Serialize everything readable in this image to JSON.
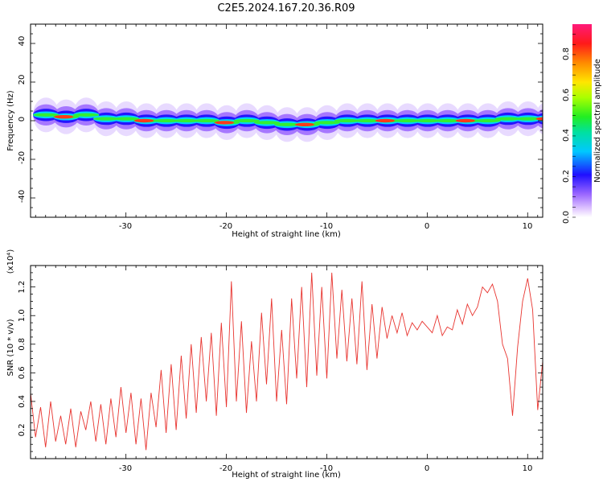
{
  "figure": {
    "title": "C2E5.2024.167.20.36.R09"
  },
  "spectrogram": {
    "ylabel": "Frequency (Hz)",
    "xlabel": "Height of straight line (km)",
    "xticks": [
      "-30",
      "-20",
      "-10",
      "0",
      "10"
    ],
    "yticks": [
      "40",
      "20",
      "0",
      "-20",
      "-40"
    ],
    "colorbar": {
      "label": "Normalized spectral amplitude",
      "ticks": [
        "0.0",
        "0.2",
        "0.4",
        "0.6",
        "0.8"
      ]
    }
  },
  "chart_data": [
    {
      "type": "heatmap",
      "title": "C2E5.2024.167.20.36.R09",
      "xlabel": "Height of straight line (km)",
      "ylabel": "Frequency (Hz)",
      "xlim": [
        -39.5,
        11.5
      ],
      "ylim": [
        -50,
        50
      ],
      "colorbar_label": "Normalized spectral amplitude",
      "colorbar_range": [
        0.0,
        0.95
      ],
      "ridge": [
        {
          "x": -39,
          "y": 3
        },
        {
          "x": -37,
          "y": 2
        },
        {
          "x": -35,
          "y": 3
        },
        {
          "x": -33,
          "y": 1
        },
        {
          "x": -31,
          "y": 1
        },
        {
          "x": -29,
          "y": 0
        },
        {
          "x": -27,
          "y": 0
        },
        {
          "x": -25,
          "y": 0
        },
        {
          "x": -23,
          "y": 0
        },
        {
          "x": -21,
          "y": -1
        },
        {
          "x": -19,
          "y": 0
        },
        {
          "x": -17,
          "y": -1
        },
        {
          "x": -15,
          "y": -2
        },
        {
          "x": -13,
          "y": -2
        },
        {
          "x": -11,
          "y": -1
        },
        {
          "x": -9,
          "y": 0
        },
        {
          "x": -7,
          "y": 0
        },
        {
          "x": -5,
          "y": 0
        },
        {
          "x": -3,
          "y": 0
        },
        {
          "x": -1,
          "y": 0
        },
        {
          "x": 1,
          "y": 0
        },
        {
          "x": 3,
          "y": 0
        },
        {
          "x": 5,
          "y": 0
        },
        {
          "x": 7,
          "y": 1
        },
        {
          "x": 9,
          "y": 1
        },
        {
          "x": 11,
          "y": 1
        }
      ]
    },
    {
      "type": "line",
      "xlabel": "Height of straight line (km)",
      "ylabel": "SNR (10 * v/v)",
      "yscale_label": "(x10⁴)",
      "xlim": [
        -39.5,
        11.5
      ],
      "ylim": [
        0.0,
        1.35
      ],
      "x": [
        -39.5,
        -39,
        -38.5,
        -38,
        -37.5,
        -37,
        -36.5,
        -36,
        -35.5,
        -35,
        -34.5,
        -34,
        -33.5,
        -33,
        -32.5,
        -32,
        -31.5,
        -31,
        -30.5,
        -30,
        -29.5,
        -29,
        -28.5,
        -28,
        -27.5,
        -27,
        -26.5,
        -26,
        -25.5,
        -25,
        -24.5,
        -24,
        -23.5,
        -23,
        -22.5,
        -22,
        -21.5,
        -21,
        -20.5,
        -20,
        -19.5,
        -19,
        -18.5,
        -18,
        -17.5,
        -17,
        -16.5,
        -16,
        -15.5,
        -15,
        -14.5,
        -14,
        -13.5,
        -13,
        -12.5,
        -12,
        -11.5,
        -11,
        -10.5,
        -10,
        -9.5,
        -9,
        -8.5,
        -8,
        -7.5,
        -7,
        -6.5,
        -6,
        -5.5,
        -5,
        -4.5,
        -4,
        -3.5,
        -3,
        -2.5,
        -2,
        -1.5,
        -1,
        -0.5,
        0,
        0.5,
        1,
        1.5,
        2,
        2.5,
        3,
        3.5,
        4,
        4.5,
        5,
        5.5,
        6,
        6.5,
        7,
        7.5,
        8,
        8.5,
        9,
        9.5,
        10,
        10.5,
        11,
        11.5
      ],
      "y": [
        0.46,
        0.15,
        0.36,
        0.08,
        0.4,
        0.12,
        0.3,
        0.1,
        0.35,
        0.08,
        0.33,
        0.2,
        0.4,
        0.12,
        0.38,
        0.1,
        0.42,
        0.15,
        0.5,
        0.18,
        0.46,
        0.1,
        0.42,
        0.06,
        0.46,
        0.22,
        0.62,
        0.18,
        0.66,
        0.2,
        0.72,
        0.28,
        0.8,
        0.32,
        0.85,
        0.4,
        0.88,
        0.3,
        0.95,
        0.36,
        1.24,
        0.4,
        0.96,
        0.32,
        0.82,
        0.4,
        1.02,
        0.52,
        1.12,
        0.4,
        0.9,
        0.38,
        1.12,
        0.56,
        1.2,
        0.5,
        1.3,
        0.58,
        1.2,
        0.56,
        1.3,
        0.7,
        1.18,
        0.68,
        1.12,
        0.66,
        1.24,
        0.62,
        1.08,
        0.7,
        1.06,
        0.84,
        1.0,
        0.88,
        1.02,
        0.86,
        0.95,
        0.9,
        0.96,
        0.92,
        0.88,
        1.0,
        0.86,
        0.92,
        0.9,
        1.04,
        0.94,
        1.08,
        1.0,
        1.06,
        1.2,
        1.16,
        1.22,
        1.1,
        0.8,
        0.7,
        0.3,
        0.78,
        1.1,
        1.26,
        1.04,
        0.34,
        0.68
      ]
    }
  ]
}
